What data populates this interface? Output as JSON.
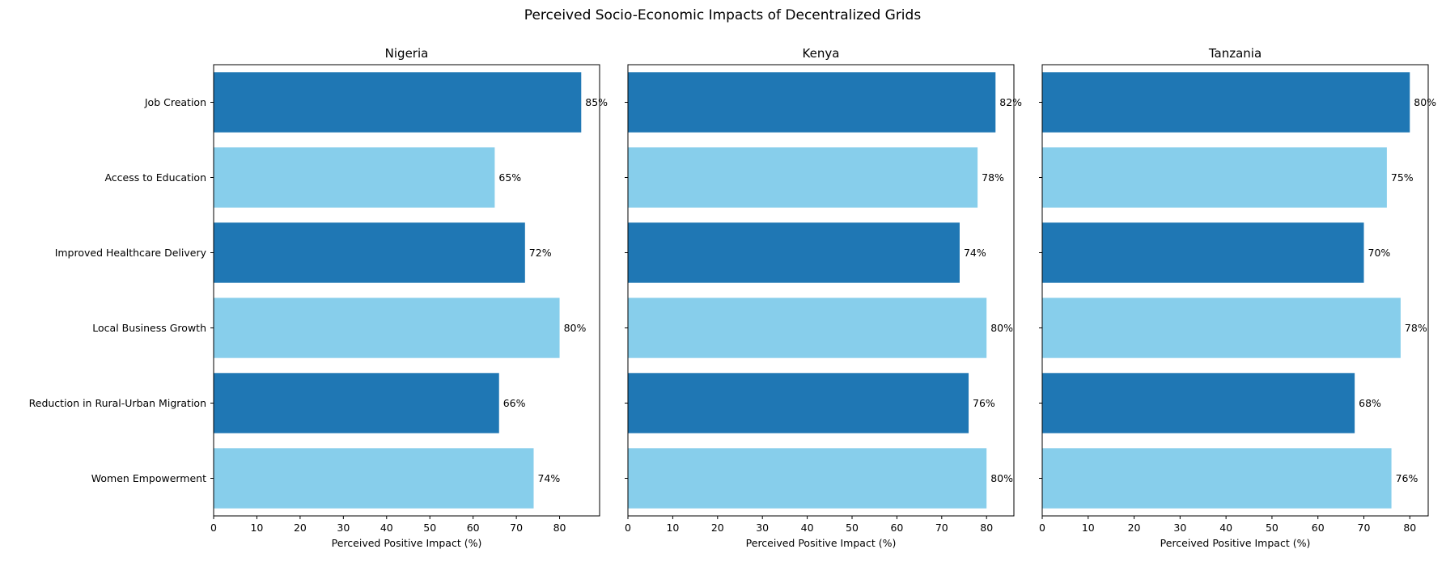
{
  "suptitle": "Perceived Socio-Economic Impacts of Decentralized Grids",
  "colors": {
    "dark_bar": "#1f77b4",
    "light_bar": "#87ceeb"
  },
  "chart_data": [
    {
      "type": "bar",
      "orientation": "horizontal",
      "title": "Nigeria",
      "xlabel": "Perceived Positive Impact (%)",
      "ylabel": "",
      "categories": [
        "Job Creation",
        "Access to Education",
        "Improved Healthcare Delivery",
        "Local Business Growth",
        "Reduction in Rural-Urban Migration",
        "Women Empowerment"
      ],
      "values": [
        85,
        65,
        72,
        80,
        66,
        74
      ],
      "data_labels": [
        "85%",
        "65%",
        "72%",
        "80%",
        "66%",
        "74%"
      ],
      "xlim": [
        0,
        89.25
      ],
      "xticks": [
        0,
        10,
        20,
        30,
        40,
        50,
        60,
        70,
        80
      ],
      "grid": false
    },
    {
      "type": "bar",
      "orientation": "horizontal",
      "title": "Kenya",
      "xlabel": "Perceived Positive Impact (%)",
      "ylabel": "",
      "categories": [
        "Job Creation",
        "Access to Education",
        "Improved Healthcare Delivery",
        "Local Business Growth",
        "Reduction in Rural-Urban Migration",
        "Women Empowerment"
      ],
      "values": [
        82,
        78,
        74,
        80,
        76,
        80
      ],
      "data_labels": [
        "82%",
        "78%",
        "74%",
        "80%",
        "76%",
        "80%"
      ],
      "xlim": [
        0,
        86.1
      ],
      "xticks": [
        0,
        10,
        20,
        30,
        40,
        50,
        60,
        70,
        80
      ],
      "grid": false
    },
    {
      "type": "bar",
      "orientation": "horizontal",
      "title": "Tanzania",
      "xlabel": "Perceived Positive Impact (%)",
      "ylabel": "",
      "categories": [
        "Job Creation",
        "Access to Education",
        "Improved Healthcare Delivery",
        "Local Business Growth",
        "Reduction in Rural-Urban Migration",
        "Women Empowerment"
      ],
      "values": [
        80,
        75,
        70,
        78,
        68,
        76
      ],
      "data_labels": [
        "80%",
        "75%",
        "70%",
        "78%",
        "68%",
        "76%"
      ],
      "xlim": [
        0,
        84
      ],
      "xticks": [
        0,
        10,
        20,
        30,
        40,
        50,
        60,
        70,
        80
      ],
      "grid": false
    }
  ]
}
